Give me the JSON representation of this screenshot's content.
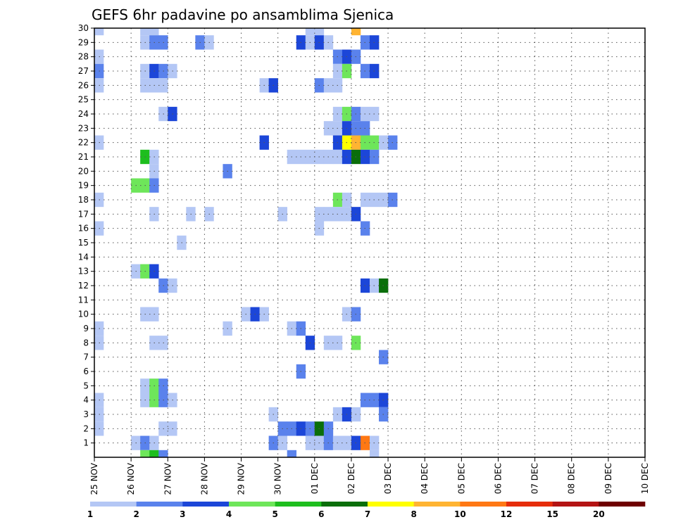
{
  "chart_data": {
    "type": "heatmap",
    "title": "GEFS 6hr padavine po ansamblima Sjenica",
    "xlabel": "",
    "ylabel": "",
    "x_tick_labels": [
      "25 NOV",
      "26 NOV",
      "27 NOV",
      "28 NOV",
      "29 NOV",
      "30 NOV",
      "01 DEC",
      "02 DEC",
      "03 DEC",
      "04 DEC",
      "05 DEC",
      "06 DEC",
      "07 DEC",
      "08 DEC",
      "09 DEC",
      "10 DEC"
    ],
    "y_tick_labels": [
      "1",
      "2",
      "3",
      "4",
      "5",
      "6",
      "7",
      "8",
      "9",
      "10",
      "11",
      "12",
      "13",
      "14",
      "15",
      "16",
      "17",
      "18",
      "19",
      "20",
      "21",
      "22",
      "23",
      "24",
      "25",
      "26",
      "27",
      "28",
      "29",
      "30"
    ],
    "y_range": [
      0,
      30
    ],
    "x_range_steps": [
      0,
      60
    ],
    "steps_per_day": 4,
    "grid": "dotted",
    "colorbar": {
      "labels": [
        "1",
        "2",
        "3",
        "4",
        "5",
        "6",
        "7",
        "8",
        "10",
        "12",
        "15",
        "20"
      ],
      "colors": [
        "#b4c7f5",
        "#5a82ec",
        "#1c46d8",
        "#6ee65a",
        "#1ebe1e",
        "#0a6e0a",
        "#ffff00",
        "#ffb432",
        "#ff7814",
        "#e62d0a",
        "#b41414",
        "#6e0000"
      ]
    },
    "cells_note": "each cell: [time step index from 25 NOV 00 (6h steps), ensemble member, color class 1-12]",
    "cells": [
      [
        0,
        30,
        1
      ],
      [
        5,
        30,
        1
      ],
      [
        6,
        30,
        1
      ],
      [
        23,
        30,
        1
      ],
      [
        24,
        30,
        1
      ],
      [
        28,
        30,
        8
      ],
      [
        5,
        29,
        1
      ],
      [
        6,
        29,
        2
      ],
      [
        7,
        29,
        2
      ],
      [
        11,
        29,
        2
      ],
      [
        12,
        29,
        1
      ],
      [
        22,
        29,
        3
      ],
      [
        23,
        29,
        1
      ],
      [
        24,
        29,
        3
      ],
      [
        25,
        29,
        1
      ],
      [
        29,
        29,
        2
      ],
      [
        30,
        29,
        3
      ],
      [
        0,
        28,
        1
      ],
      [
        26,
        28,
        2
      ],
      [
        27,
        28,
        3
      ],
      [
        28,
        28,
        2
      ],
      [
        0,
        27,
        2
      ],
      [
        5,
        27,
        1
      ],
      [
        6,
        27,
        3
      ],
      [
        7,
        27,
        2
      ],
      [
        8,
        27,
        1
      ],
      [
        26,
        27,
        1
      ],
      [
        27,
        27,
        4
      ],
      [
        29,
        27,
        2
      ],
      [
        30,
        27,
        3
      ],
      [
        0,
        26,
        1
      ],
      [
        5,
        26,
        1
      ],
      [
        6,
        26,
        1
      ],
      [
        7,
        26,
        1
      ],
      [
        18,
        26,
        1
      ],
      [
        19,
        26,
        3
      ],
      [
        24,
        26,
        2
      ],
      [
        25,
        26,
        1
      ],
      [
        26,
        26,
        1
      ],
      [
        7,
        24,
        1
      ],
      [
        8,
        24,
        3
      ],
      [
        26,
        24,
        1
      ],
      [
        27,
        24,
        4
      ],
      [
        28,
        24,
        2
      ],
      [
        29,
        24,
        1
      ],
      [
        30,
        24,
        1
      ],
      [
        25,
        23,
        1
      ],
      [
        26,
        23,
        1
      ],
      [
        27,
        23,
        3
      ],
      [
        28,
        23,
        2
      ],
      [
        29,
        23,
        2
      ],
      [
        0,
        22,
        1
      ],
      [
        18,
        22,
        3
      ],
      [
        26,
        22,
        3
      ],
      [
        27,
        22,
        7
      ],
      [
        28,
        22,
        8
      ],
      [
        29,
        22,
        4
      ],
      [
        30,
        22,
        4
      ],
      [
        31,
        22,
        1
      ],
      [
        32,
        22,
        2
      ],
      [
        5,
        21,
        5
      ],
      [
        6,
        21,
        1
      ],
      [
        21,
        21,
        1
      ],
      [
        22,
        21,
        1
      ],
      [
        23,
        21,
        1
      ],
      [
        24,
        21,
        1
      ],
      [
        25,
        21,
        1
      ],
      [
        26,
        21,
        1
      ],
      [
        27,
        21,
        3
      ],
      [
        28,
        21,
        6
      ],
      [
        29,
        21,
        3
      ],
      [
        30,
        21,
        2
      ],
      [
        6,
        20,
        1
      ],
      [
        14,
        20,
        2
      ],
      [
        4,
        19,
        4
      ],
      [
        5,
        19,
        4
      ],
      [
        6,
        19,
        2
      ],
      [
        0,
        18,
        1
      ],
      [
        26,
        18,
        4
      ],
      [
        27,
        18,
        1
      ],
      [
        29,
        18,
        1
      ],
      [
        30,
        18,
        1
      ],
      [
        31,
        18,
        1
      ],
      [
        32,
        18,
        2
      ],
      [
        6,
        17,
        1
      ],
      [
        10,
        17,
        1
      ],
      [
        12,
        17,
        1
      ],
      [
        20,
        17,
        1
      ],
      [
        24,
        17,
        1
      ],
      [
        25,
        17,
        1
      ],
      [
        26,
        17,
        1
      ],
      [
        27,
        17,
        1
      ],
      [
        28,
        17,
        3
      ],
      [
        0,
        16,
        1
      ],
      [
        24,
        16,
        1
      ],
      [
        29,
        16,
        2
      ],
      [
        9,
        15,
        1
      ],
      [
        4,
        13,
        1
      ],
      [
        5,
        13,
        4
      ],
      [
        6,
        13,
        3
      ],
      [
        7,
        12,
        2
      ],
      [
        8,
        12,
        1
      ],
      [
        29,
        12,
        3
      ],
      [
        30,
        12,
        1
      ],
      [
        31,
        12,
        6
      ],
      [
        5,
        10,
        1
      ],
      [
        6,
        10,
        1
      ],
      [
        16,
        10,
        1
      ],
      [
        17,
        10,
        3
      ],
      [
        18,
        10,
        1
      ],
      [
        27,
        10,
        1
      ],
      [
        28,
        10,
        2
      ],
      [
        0,
        9,
        1
      ],
      [
        14,
        9,
        1
      ],
      [
        21,
        9,
        1
      ],
      [
        22,
        9,
        2
      ],
      [
        0,
        8,
        1
      ],
      [
        6,
        8,
        1
      ],
      [
        7,
        8,
        1
      ],
      [
        23,
        8,
        3
      ],
      [
        25,
        8,
        1
      ],
      [
        26,
        8,
        1
      ],
      [
        28,
        8,
        4
      ],
      [
        31,
        7,
        2
      ],
      [
        22,
        6,
        2
      ],
      [
        5,
        5,
        1
      ],
      [
        6,
        5,
        4
      ],
      [
        7,
        5,
        2
      ],
      [
        0,
        4,
        1
      ],
      [
        5,
        4,
        1
      ],
      [
        6,
        4,
        4
      ],
      [
        7,
        4,
        2
      ],
      [
        8,
        4,
        1
      ],
      [
        29,
        4,
        2
      ],
      [
        30,
        4,
        2
      ],
      [
        31,
        4,
        3
      ],
      [
        0,
        3,
        1
      ],
      [
        19,
        3,
        1
      ],
      [
        26,
        3,
        1
      ],
      [
        27,
        3,
        3
      ],
      [
        28,
        3,
        1
      ],
      [
        31,
        3,
        2
      ],
      [
        0,
        2,
        1
      ],
      [
        7,
        2,
        1
      ],
      [
        8,
        2,
        1
      ],
      [
        20,
        2,
        2
      ],
      [
        21,
        2,
        2
      ],
      [
        22,
        2,
        3
      ],
      [
        23,
        2,
        2
      ],
      [
        24,
        2,
        6
      ],
      [
        25,
        2,
        2
      ],
      [
        4,
        1,
        1
      ],
      [
        5,
        1,
        2
      ],
      [
        6,
        1,
        1
      ],
      [
        19,
        1,
        2
      ],
      [
        20,
        1,
        1
      ],
      [
        23,
        1,
        1
      ],
      [
        24,
        1,
        1
      ],
      [
        25,
        1,
        2
      ],
      [
        26,
        1,
        1
      ],
      [
        27,
        1,
        1
      ],
      [
        28,
        1,
        3
      ],
      [
        29,
        1,
        9
      ],
      [
        30,
        1,
        1
      ],
      [
        5,
        0,
        4
      ],
      [
        6,
        0,
        5
      ],
      [
        7,
        0,
        2
      ],
      [
        21,
        0,
        2
      ],
      [
        30,
        0,
        1
      ]
    ]
  }
}
